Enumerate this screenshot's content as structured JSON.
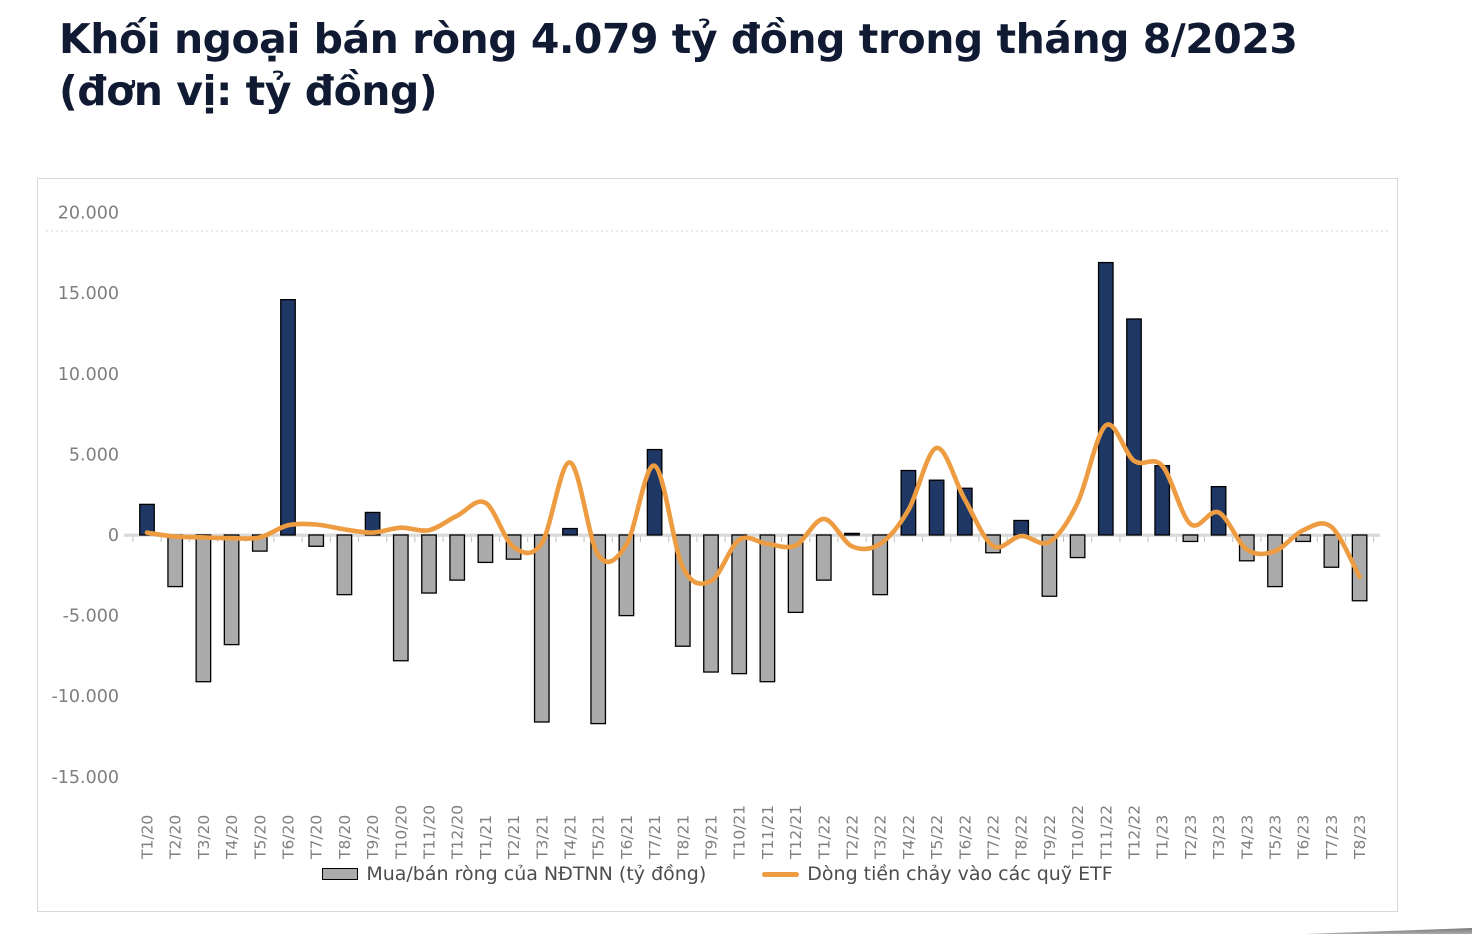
{
  "title": {
    "line1": "Khối ngoại bán ròng 4.079 tỷ đồng trong tháng 8/2023",
    "line2": "(đơn vị: tỷ đồng)"
  },
  "chart_data": {
    "type": "bar+line",
    "categories": [
      "T1/20",
      "T2/20",
      "T3/20",
      "T4/20",
      "T5/20",
      "T6/20",
      "T7/20",
      "T8/20",
      "T9/20",
      "T10/20",
      "T11/20",
      "T12/20",
      "T1/21",
      "T2/21",
      "T3/21",
      "T4/21",
      "T5/21",
      "T6/21",
      "T7/21",
      "T8/21",
      "T9/21",
      "T10/21",
      "T11/21",
      "T12/21",
      "T1/22",
      "T2/22",
      "T3/22",
      "T4/22",
      "T5/22",
      "T6/22",
      "T7/22",
      "T8/22",
      "T9/22",
      "T10/22",
      "T11/22",
      "T12/22",
      "T1/23",
      "T2/23",
      "T3/23",
      "T4/23",
      "T5/23",
      "T6/23",
      "T7/23",
      "T8/23"
    ],
    "series": [
      {
        "name": "Mua/bán ròng của NĐTNN (tỷ đồng)",
        "type": "bar",
        "values": [
          1900,
          -3200,
          -9100,
          -6800,
          -1000,
          14600,
          -700,
          -3700,
          1400,
          -7800,
          -3600,
          -2800,
          -1700,
          -1500,
          -11600,
          400,
          -11700,
          -5000,
          5300,
          -6900,
          -8500,
          -8600,
          -9100,
          -4800,
          -2800,
          100,
          -3700,
          4000,
          3400,
          2900,
          -1100,
          900,
          -3800,
          -1400,
          16900,
          13400,
          4300,
          -400,
          3000,
          -1600,
          -3200,
          -400,
          -2000,
          -4079
        ]
      },
      {
        "name": "Dòng tiền chảy vào các quỹ ETF",
        "type": "line",
        "values": [
          150,
          -100,
          -150,
          -200,
          -150,
          600,
          650,
          350,
          150,
          450,
          300,
          1200,
          2000,
          -750,
          -500,
          4500,
          -1250,
          -600,
          4300,
          -2000,
          -2850,
          -300,
          -550,
          -650,
          1000,
          -700,
          -550,
          1550,
          5400,
          2200,
          -680,
          -60,
          -430,
          2000,
          6800,
          4600,
          4300,
          680,
          1400,
          -900,
          -1000,
          300,
          500,
          -2600
        ]
      }
    ],
    "yticks": [
      {
        "label": "20.000",
        "value": 20000
      },
      {
        "label": "15.000",
        "value": 15000
      },
      {
        "label": "10.000",
        "value": 10000
      },
      {
        "label": "5.000",
        "value": 5000
      },
      {
        "label": "0",
        "value": 0
      },
      {
        "label": "-5.000",
        "value": -5000
      },
      {
        "label": "-10.000",
        "value": -10000
      },
      {
        "label": "-15.000",
        "value": -15000
      }
    ],
    "ylim": [
      -15000,
      20000
    ],
    "grid": false,
    "legend_position": "bottom"
  },
  "colors": {
    "title_text": "#101b33",
    "bar_positive": "#1e3764",
    "bar_negative": "#ababab",
    "bar_border": "#000000",
    "line": "#ed9c42",
    "axis_line": "#d9d9d9",
    "axis_tick": "#bfbfbf",
    "tick_label": "#7f7f7f",
    "legend_text": "#4d4d4d"
  }
}
